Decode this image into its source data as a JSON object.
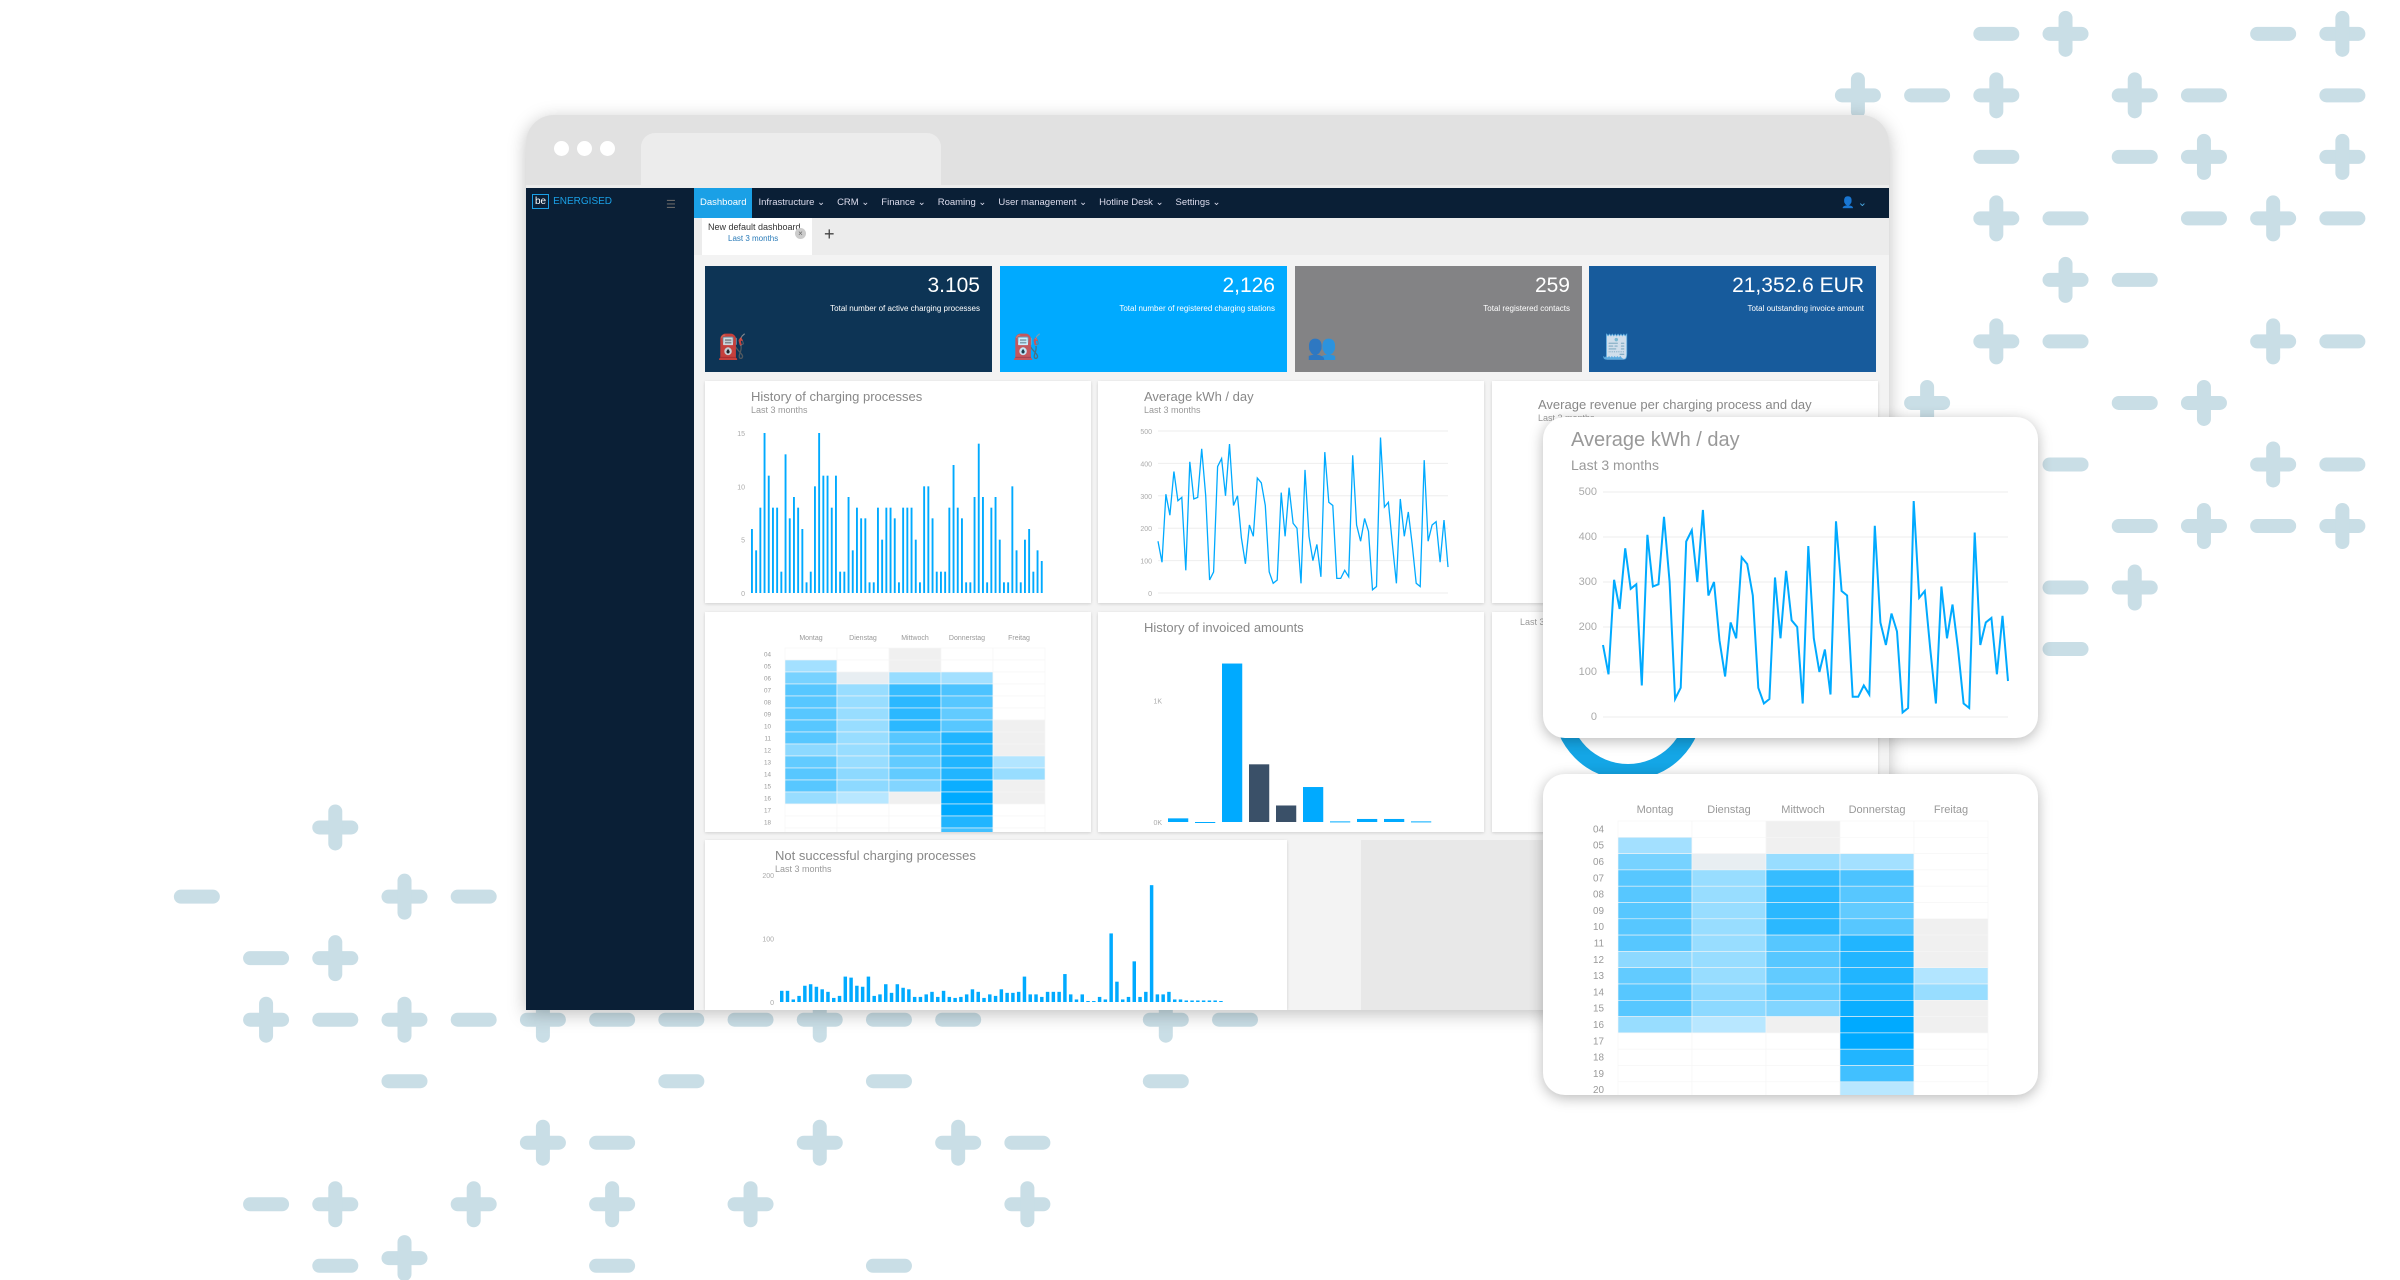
{
  "colors": {
    "accent": "#00aaff",
    "nav": "#0a1f36",
    "kpi": [
      "#0d3455",
      "#00aaff",
      "#838385",
      "#175b9c"
    ],
    "dark_bar": "#3a5068",
    "decor": "#c9dee6"
  },
  "app": {
    "logo_box": "be",
    "logo_text": "ENERGISED",
    "menu_icon": "hamburger-icon",
    "user_icon": "user-icon"
  },
  "nav": {
    "items": [
      {
        "label": "Dashboard",
        "active": true
      },
      {
        "label": "Infrastructure ⌄"
      },
      {
        "label": "CRM ⌄"
      },
      {
        "label": "Finance ⌄"
      },
      {
        "label": "Roaming ⌄"
      },
      {
        "label": "User management ⌄"
      },
      {
        "label": "Hotline Desk ⌄"
      },
      {
        "label": "Settings ⌄"
      }
    ]
  },
  "tabs": {
    "active": {
      "title": "New default dashboard",
      "subtitle": "Last 3 months",
      "close": "×"
    },
    "add": "+"
  },
  "kpis": [
    {
      "value": "3.105",
      "label": "Total number of active charging processes",
      "icon": "charging-station-icon",
      "glyph": "⛽"
    },
    {
      "value": "2,126",
      "label": "Total number of registered charging stations",
      "icon": "charging-station-icon",
      "glyph": "⛽"
    },
    {
      "value": "259",
      "label": "Total registered contacts",
      "icon": "contacts-icon",
      "glyph": "👥"
    },
    {
      "value": "21,352.6 EUR",
      "label": "Total outstanding invoice amount",
      "icon": "invoice-icon",
      "glyph": "🧾"
    }
  ],
  "cards": {
    "history": {
      "title": "History of charging processes",
      "subtitle": "Last 3 months"
    },
    "kwh": {
      "title": "Average kWh / day",
      "subtitle": "Last 3 months"
    },
    "revenue": {
      "title": "Average revenue per charging process and day",
      "subtitle": "Last 3 months"
    },
    "invoiced": {
      "title": "History of invoiced amounts"
    },
    "third_row2": {
      "subtitle": "Last 3 months"
    },
    "failed": {
      "title": "Not successful charging processes",
      "subtitle": "Last 3 months"
    },
    "overlay_kwh": {
      "title": "Average kWh / day",
      "subtitle": "Last 3 months"
    }
  },
  "chart_data": [
    {
      "id": "history",
      "type": "bar",
      "ylim": [
        0,
        15
      ],
      "yticks": [
        "0",
        "5",
        "10",
        "15"
      ],
      "values": [
        6,
        4,
        8,
        15,
        11,
        8,
        8,
        2,
        13,
        7,
        9,
        8,
        6,
        1,
        2,
        10,
        15,
        11,
        11,
        8,
        11,
        2,
        2,
        9,
        4,
        8,
        7,
        7,
        1,
        1,
        8,
        5,
        8,
        8,
        7,
        1,
        8,
        8,
        8,
        5,
        1,
        10,
        10,
        7,
        2,
        2,
        2,
        8,
        12,
        8,
        7,
        1,
        1,
        9,
        14,
        9,
        1,
        8,
        9,
        5,
        1,
        1,
        10,
        4,
        1,
        5,
        6,
        2,
        4,
        3
      ]
    },
    {
      "id": "kwh",
      "type": "line",
      "ylim": [
        0,
        500
      ],
      "yticks": [
        "0",
        "100",
        "200",
        "300",
        "400",
        "500"
      ],
      "values": [
        160,
        95,
        305,
        240,
        375,
        285,
        295,
        70,
        405,
        290,
        295,
        445,
        300,
        40,
        65,
        390,
        415,
        300,
        460,
        270,
        300,
        170,
        90,
        210,
        175,
        355,
        340,
        270,
        65,
        30,
        40,
        310,
        175,
        325,
        215,
        200,
        30,
        380,
        175,
        100,
        150,
        50,
        435,
        280,
        270,
        45,
        45,
        70,
        50,
        425,
        210,
        160,
        230,
        190,
        10,
        20,
        480,
        265,
        280,
        150,
        30,
        290,
        175,
        250,
        150,
        30,
        20,
        410,
        160,
        210,
        220,
        95,
        225,
        80
      ]
    },
    {
      "id": "invoiced",
      "type": "bar",
      "ylim": [
        0,
        1400
      ],
      "yticks": [
        "0K",
        "1K"
      ],
      "values": [
        30,
        0,
        1305,
        475,
        136,
        288,
        5,
        25,
        25,
        5
      ],
      "dark": [
        false,
        false,
        false,
        true,
        true,
        false,
        false,
        false,
        false,
        false
      ]
    },
    {
      "id": "failed",
      "type": "bar",
      "ylim": [
        0,
        250
      ],
      "yticks": [
        "0",
        "100",
        "200"
      ],
      "values": [
        22,
        22,
        5,
        12,
        32,
        35,
        30,
        25,
        20,
        8,
        12,
        50,
        48,
        32,
        30,
        50,
        12,
        15,
        35,
        18,
        35,
        28,
        25,
        10,
        10,
        15,
        20,
        10,
        22,
        10,
        8,
        10,
        15,
        25,
        20,
        8,
        15,
        12,
        25,
        18,
        18,
        20,
        50,
        15,
        15,
        10,
        20,
        20,
        20,
        55,
        15,
        5,
        15,
        2,
        2,
        10,
        5,
        135,
        40,
        5,
        10,
        80,
        10,
        20,
        230,
        15,
        15,
        20,
        5,
        5,
        3,
        3,
        3,
        3,
        3,
        3,
        2
      ]
    },
    {
      "id": "heatmap",
      "type": "heatmap",
      "columns": [
        "Montag",
        "Dienstag",
        "Mittwoch",
        "Donnerstag",
        "Freitag"
      ],
      "rows": [
        "04",
        "05",
        "06",
        "07",
        "08",
        "09",
        "10",
        "11",
        "12",
        "13",
        "14",
        "15",
        "16",
        "17",
        "18",
        "19",
        "20"
      ],
      "values": [
        [
          0,
          0,
          -1,
          0,
          0
        ],
        [
          0.25,
          0,
          -1,
          0,
          0
        ],
        [
          0.45,
          -0.5,
          0.3,
          0.25,
          0
        ],
        [
          0.6,
          0.3,
          0.75,
          0.65,
          0
        ],
        [
          0.6,
          0.3,
          0.8,
          0.6,
          0
        ],
        [
          0.6,
          0.3,
          0.8,
          0.55,
          0
        ],
        [
          0.6,
          0.3,
          0.8,
          0.6,
          -1
        ],
        [
          0.6,
          0.3,
          0.6,
          0.85,
          -1
        ],
        [
          0.35,
          0.3,
          0.6,
          0.85,
          -1
        ],
        [
          0.55,
          0.3,
          0.55,
          0.85,
          0.18
        ],
        [
          0.6,
          0.35,
          0.55,
          0.85,
          0.3
        ],
        [
          0.6,
          0.35,
          0.4,
          0.95,
          -1
        ],
        [
          0.3,
          0.15,
          -1,
          1,
          -1
        ],
        [
          0,
          0,
          0,
          1,
          0
        ],
        [
          0,
          0,
          0,
          0.85,
          0
        ],
        [
          0,
          0,
          0,
          0.7,
          0
        ],
        [
          0,
          0,
          0,
          0.15,
          0
        ]
      ]
    }
  ]
}
